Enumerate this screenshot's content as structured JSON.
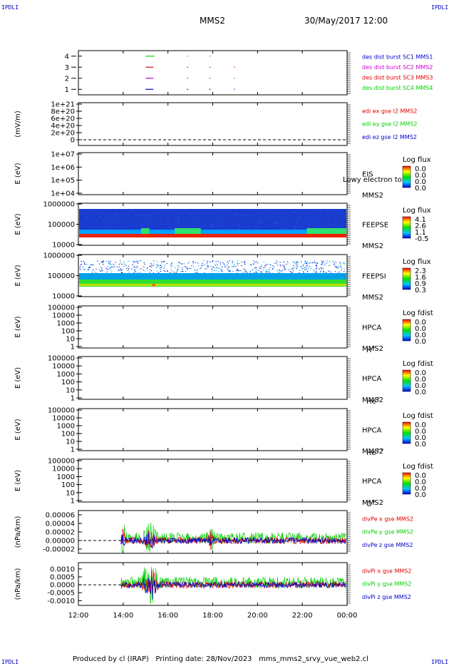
{
  "corners": {
    "top_left": "IPDLI",
    "top_right": "IPDLI",
    "bottom_left": "IPDLI",
    "bottom_right": "IPDLI"
  },
  "header": {
    "mission": "MMS2",
    "datetime": "30/May/2017 12:00"
  },
  "footer": {
    "producer": "Produced by cl (IRAP)",
    "printing": "Printing date: 28/Nov/2023",
    "filename": "mms_mms2_srvy_vue_web2.cl"
  },
  "colors": {
    "red": "#e00000",
    "green": "#00d000",
    "blue": "#0000cc",
    "magenta": "#cc00cc",
    "spectro_bg": "#1a3ccf"
  },
  "time_axis": {
    "ticks": [
      "12:00",
      "14:00",
      "16:00",
      "18:00",
      "20:00",
      "22:00",
      "00:00"
    ],
    "start_hour": 12,
    "end_hour": 24
  },
  "chart_data": [
    {
      "type": "scatter",
      "id": "burst",
      "yticks": [
        "1",
        "2",
        "3",
        "4"
      ],
      "ylim": [
        0.5,
        4.5
      ],
      "legend": [
        {
          "label": "des dist burst SC1 MMS1",
          "color": "#0000cc"
        },
        {
          "label": "des dist burst SC2 MMS2",
          "color": "#cc00cc"
        },
        {
          "label": "des dist burst SC3 MMS3",
          "color": "#e00000"
        },
        {
          "label": "des dist burst SC4 MMS4",
          "color": "#00d000"
        }
      ],
      "series": [
        {
          "sc": 4,
          "color": "#00d000",
          "segments": [
            [
              15.0,
              15.4
            ],
            [
              16.85,
              16.9
            ],
            [
              17.85,
              17.9
            ]
          ]
        },
        {
          "sc": 3,
          "color": "#e00000",
          "segments": [
            [
              15.0,
              15.35
            ],
            [
              16.85,
              16.9
            ],
            [
              17.85,
              17.9
            ],
            [
              18.95,
              18.96
            ]
          ]
        },
        {
          "sc": 2,
          "color": "#cc00cc",
          "segments": [
            [
              15.0,
              15.35
            ],
            [
              16.85,
              16.9
            ],
            [
              17.85,
              17.9
            ],
            [
              18.95,
              18.96
            ]
          ]
        },
        {
          "sc": 1,
          "color": "#0000cc",
          "segments": [
            [
              15.0,
              15.35
            ],
            [
              16.85,
              16.9
            ],
            [
              17.85,
              17.9
            ],
            [
              18.95,
              18.96
            ]
          ]
        }
      ]
    },
    {
      "type": "line",
      "id": "edi",
      "ylabel": "(mV/m)",
      "yticks": [
        "0",
        "2e+20",
        "4e+20",
        "6e+20",
        "8e+20",
        "1e+21"
      ],
      "legend": [
        {
          "label": "edi ex gse l2 MMS2",
          "color": "#e00000"
        },
        {
          "label": "edi ey gse l2 MMS2",
          "color": "#00d000"
        },
        {
          "label": "edi ez gse l2 MMS2",
          "color": "#0000cc"
        }
      ]
    },
    {
      "type": "heatmap",
      "id": "eis",
      "ylabel": "E (eV)",
      "yticks": [
        "1e+04",
        "1e+05",
        "1e+06",
        "1e+07"
      ],
      "instrument": "EIS",
      "spacecraft": "MMS2",
      "overlay": "Lowy electron to",
      "colorbar_title": "Log flux",
      "colorbar_ticks": [
        "0.0",
        "0.0",
        "0.0",
        "0.0"
      ]
    },
    {
      "type": "heatmap",
      "id": "feepse",
      "ylabel": "E (eV)",
      "yticks": [
        "10000",
        "100000",
        "1000000"
      ],
      "instrument": "FEEPSE",
      "spacecraft": "MMS2",
      "colorbar_title": "Log flux",
      "colorbar_ticks": [
        "4.1",
        "2.6",
        "1.1",
        "-0.5"
      ]
    },
    {
      "type": "heatmap",
      "id": "feepsi",
      "ylabel": "E (eV)",
      "yticks": [
        "10000",
        "100000",
        "1000000"
      ],
      "instrument": "FEEPSI",
      "spacecraft": "MMS2",
      "colorbar_title": "Log flux",
      "colorbar_ticks": [
        "2.3",
        "1.6",
        "0.9",
        "0.3"
      ]
    },
    {
      "type": "heatmap",
      "id": "hpca_h",
      "ylabel": "E (eV)",
      "yticks": [
        "1",
        "10",
        "100",
        "1000",
        "10000",
        "100000"
      ],
      "instrument": "HPCA",
      "spacecraft": "MMS2",
      "species": "H",
      "charge": "+",
      "colorbar_title": "Log fdist",
      "colorbar_ticks": [
        "0.0",
        "0.0",
        "0.0",
        "0.0"
      ]
    },
    {
      "type": "heatmap",
      "id": "hpca_he",
      "ylabel": "E (eV)",
      "yticks": [
        "1",
        "10",
        "100",
        "1000",
        "10000",
        "100000"
      ],
      "instrument": "HPCA",
      "spacecraft": "MMS2",
      "species": "He",
      "charge": "+",
      "colorbar_title": "Log fdist",
      "colorbar_ticks": [
        "0.0",
        "0.0",
        "0.0",
        "0.0"
      ]
    },
    {
      "type": "heatmap",
      "id": "hpca_he2",
      "ylabel": "E (eV)",
      "yticks": [
        "1",
        "10",
        "100",
        "1000",
        "10000",
        "100000"
      ],
      "instrument": "HPCA",
      "spacecraft": "MMS2",
      "species": "He",
      "charge": "++",
      "colorbar_title": "Log fdist",
      "colorbar_ticks": [
        "0.0",
        "0.0",
        "0.0",
        "0.0"
      ]
    },
    {
      "type": "heatmap",
      "id": "hpca_o",
      "ylabel": "E (eV)",
      "yticks": [
        "1",
        "10",
        "100",
        "1000",
        "10000",
        "100000"
      ],
      "instrument": "HPCA",
      "spacecraft": "MMS2",
      "species": "O",
      "charge": "+",
      "colorbar_title": "Log fdist",
      "colorbar_ticks": [
        "0.0",
        "0.0",
        "0.0",
        "0.0"
      ]
    },
    {
      "type": "line",
      "id": "divpe",
      "ylabel": "(nPa/km)",
      "yticks": [
        "-0.00002",
        "0.00000",
        "0.00002",
        "0.00004",
        "0.00006"
      ],
      "ylim": [
        -3e-05,
        7e-05
      ],
      "legend": [
        {
          "label": "divPe x gse MMS2",
          "color": "#e00000"
        },
        {
          "label": "divPe y gse MMS2",
          "color": "#00d000"
        },
        {
          "label": "divPe z gse MMS2",
          "color": "#0000cc"
        }
      ],
      "start_hour": 13.9
    },
    {
      "type": "line",
      "id": "divpi",
      "ylabel": "(nPa/km)",
      "yticks": [
        "-0.0010",
        "-0.0005",
        "0.0000",
        "0.0005",
        "0.0010"
      ],
      "ylim": [
        -0.0013,
        0.0014
      ],
      "legend": [
        {
          "label": "divPi x gse MMS2",
          "color": "#e00000"
        },
        {
          "label": "divPi y gse MMS2",
          "color": "#00d000"
        },
        {
          "label": "divPi z gse MMS2",
          "color": "#0000cc"
        }
      ],
      "start_hour": 13.9
    }
  ]
}
